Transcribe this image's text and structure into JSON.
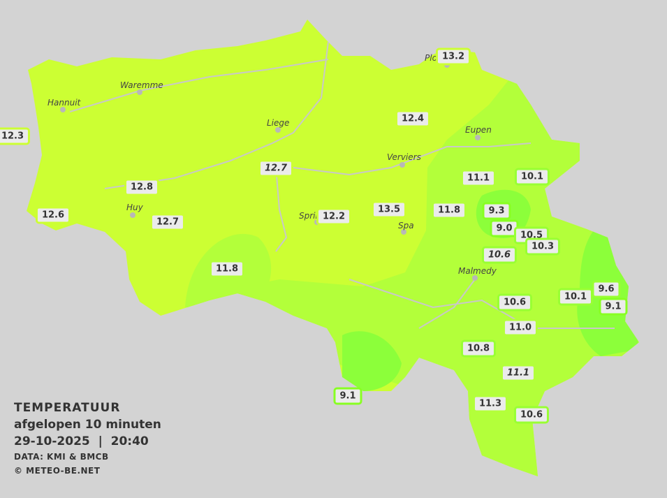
{
  "legend": {
    "title": "TEMPERATUUR",
    "subtitle": "afgelopen 10 minuten",
    "datetime": "29-10-2025  |  20:40",
    "source": "DATA: KMI & BMCB",
    "copyright": "© METEO-BE.NET"
  },
  "colors": {
    "background": "#d3d3d3",
    "zone_12_13": "#ccff33",
    "zone_11_12": "#b3ff3a",
    "zone_9_11": "#8cff3a",
    "rivers": "#c8c8c8"
  },
  "places": [
    {
      "name": "Hannuit"
    },
    {
      "name": "Waremme"
    },
    {
      "name": "Liege"
    },
    {
      "name": "Verviers"
    },
    {
      "name": "Eupen"
    },
    {
      "name": "Sprin"
    },
    {
      "name": "Spa"
    },
    {
      "name": "Huy"
    },
    {
      "name": "Malmedy"
    },
    {
      "name": "Plo"
    }
  ],
  "readings": [
    {
      "value": "13.2",
      "italic": false
    },
    {
      "value": "12.4",
      "italic": false
    },
    {
      "value": "12.3",
      "italic": false
    },
    {
      "value": "12.7",
      "italic": true
    },
    {
      "value": "12.8",
      "italic": false
    },
    {
      "value": "12.6",
      "italic": false
    },
    {
      "value": "12.7",
      "italic": false
    },
    {
      "value": "12.2",
      "italic": false
    },
    {
      "value": "13.5",
      "italic": false
    },
    {
      "value": "11.8",
      "italic": false
    },
    {
      "value": "11.1",
      "italic": false
    },
    {
      "value": "10.1",
      "italic": false
    },
    {
      "value": "9.3",
      "italic": false
    },
    {
      "value": "9.0",
      "italic": false
    },
    {
      "value": "10.5",
      "italic": false
    },
    {
      "value": "10.3",
      "italic": false
    },
    {
      "value": "10.6",
      "italic": true
    },
    {
      "value": "11.8",
      "italic": false
    },
    {
      "value": "10.6",
      "italic": false
    },
    {
      "value": "10.1",
      "italic": false
    },
    {
      "value": "9.6",
      "italic": false
    },
    {
      "value": "9.1",
      "italic": false
    },
    {
      "value": "11.0",
      "italic": false
    },
    {
      "value": "10.8",
      "italic": false
    },
    {
      "value": "11.1",
      "italic": true
    },
    {
      "value": "9.1",
      "italic": false
    },
    {
      "value": "11.3",
      "italic": false
    },
    {
      "value": "10.6",
      "italic": false
    }
  ]
}
